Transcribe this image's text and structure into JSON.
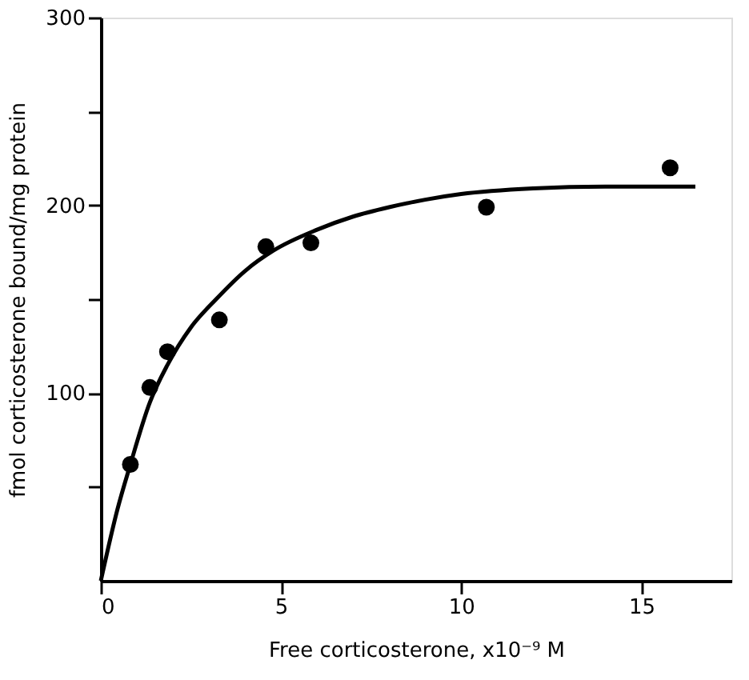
{
  "chart_data": {
    "type": "scatter",
    "xlabel": "Free corticosterone,   x10⁻⁹ M",
    "ylabel": "fmol corticosterone bound/mg protein",
    "xlim": [
      0,
      17.5
    ],
    "ylim": [
      0,
      300
    ],
    "xticks": [
      0,
      5,
      10,
      15
    ],
    "yticks": [
      {
        "value": 50,
        "label": null
      },
      100,
      {
        "value": 150,
        "label": null
      },
      200,
      {
        "value": 250,
        "label": null
      },
      300
    ],
    "grid": false,
    "marker": "circle",
    "series": [
      {
        "color": "#000000",
        "x": [
          0.82,
          1.36,
          1.85,
          3.29,
          4.58,
          5.83,
          10.7,
          15.8
        ],
        "values": [
          62,
          103,
          122,
          139,
          178,
          180,
          199,
          220
        ]
      },
      {
        "type": "line",
        "color": "#000000",
        "line_style": "solid",
        "marker": "none",
        "x": [
          0,
          0.46,
          0.82,
          1.36,
          1.85,
          2.5,
          3.2,
          4.0,
          4.8,
          6.0,
          7.0,
          8.0,
          9.0,
          10.0,
          12.0,
          14.0,
          16.5
        ],
        "values": [
          0,
          38,
          62,
          95,
          115,
          135,
          150,
          165,
          176,
          187,
          194,
          199,
          203,
          206,
          209,
          210,
          210
        ]
      }
    ]
  }
}
